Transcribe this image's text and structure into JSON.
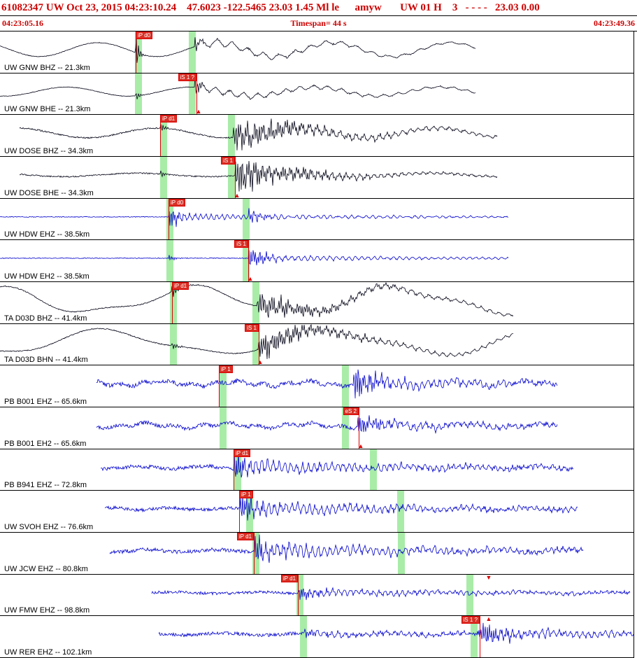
{
  "header": {
    "line1": "61082347 UW Oct 23, 2015 04:23:10.24    47.6023 -122.5465 23.03 1.45 Ml le      amyw       UW 01 H    3   - - - -   23.03 0.00",
    "start_time": "04:23:05.16",
    "timespan": "Timespan=  44 s",
    "end_time": "04:23:49.36"
  },
  "colors": {
    "header_text": "#cc0000",
    "pick_red": "#dd0000",
    "band_green": "#a8eca8",
    "flag_bg": "#d93025",
    "flag_text": "#ffffff",
    "trace_colors": {
      "black": "#000014",
      "blue": "#0000cc"
    }
  },
  "icons": {
    "up": "▲",
    "down": "▼"
  },
  "traces": [
    {
      "label": "UW GNW BHZ -- 21.3km",
      "color": "black",
      "x0": 0,
      "x1": 0.75,
      "seed": 11,
      "sines": [
        {
          "amp": 10,
          "period": 168,
          "phase": 2.6
        }
      ],
      "noise": 0.4,
      "bursts": [
        {
          "x": 0.214,
          "amp": 24,
          "freq": 0.3,
          "decay": 0.26
        },
        {
          "x": 0.307,
          "amp": 15,
          "freq": 0.28,
          "decay": 0.2
        },
        {
          "x": 0.312,
          "amp": 5,
          "freq": 0.045,
          "decay": 0.004
        }
      ],
      "bands": [
        0.219,
        0.303
      ],
      "picks": [
        {
          "label": "iP d0",
          "line": 0.214,
          "side": "right"
        }
      ],
      "triangles": []
    },
    {
      "label": "UW GNW BHE -- 21.3km",
      "color": "black",
      "x0": 0,
      "x1": 0.75,
      "seed": 12,
      "sines": [
        {
          "amp": 6.5,
          "period": 178,
          "phase": 4.5
        }
      ],
      "noise": 0.4,
      "bursts": [
        {
          "x": 0.214,
          "amp": 9,
          "freq": 0.3,
          "decay": 0.25
        },
        {
          "x": 0.307,
          "amp": 21,
          "freq": 0.3,
          "decay": 0.22
        },
        {
          "x": 0.313,
          "amp": 4.5,
          "freq": 0.05,
          "decay": 0.0035
        }
      ],
      "bands": [
        0.219,
        0.303
      ],
      "picks": [
        {
          "label": "iS 1 ?",
          "line": 0.31,
          "side": "left"
        }
      ],
      "triangles": [
        {
          "x": 0.3135,
          "edge": "bottom",
          "dir": "up"
        }
      ]
    },
    {
      "label": "UW DOSE BHZ -- 34.3km",
      "color": "black",
      "x0": 0.031,
      "x1": 0.785,
      "seed": 13,
      "sines": [
        {
          "amp": 7,
          "period": 200,
          "phase": 0.8
        }
      ],
      "noise": 1.0,
      "bursts": [
        {
          "x": 0.253,
          "amp": 13,
          "freq": 0.3,
          "decay": 0.22
        },
        {
          "x": 0.368,
          "amp": 17,
          "freq": 0.3,
          "decay": 0.012
        },
        {
          "x": 0.375,
          "amp": 9,
          "freq": 0.09,
          "decay": 0.005
        }
      ],
      "bands": [
        0.258,
        0.365
      ],
      "picks": [
        {
          "label": "iP d1",
          "line": 0.253,
          "side": "right"
        }
      ],
      "triangles": []
    },
    {
      "label": "UW DOSE BHE -- 34.3km",
      "color": "black",
      "x0": 0.031,
      "x1": 0.785,
      "seed": 14,
      "sines": [
        {
          "amp": 2.5,
          "period": 210,
          "phase": 2.0
        }
      ],
      "noise": 0.9,
      "bursts": [
        {
          "x": 0.253,
          "amp": 4,
          "freq": 0.3,
          "decay": 0.2
        },
        {
          "x": 0.371,
          "amp": 19,
          "freq": 0.31,
          "decay": 0.014
        },
        {
          "x": 0.378,
          "amp": 8,
          "freq": 0.1,
          "decay": 0.006
        }
      ],
      "bands": [
        0.258,
        0.365
      ],
      "picks": [
        {
          "label": "iS 1",
          "line": 0.371,
          "side": "left"
        }
      ],
      "triangles": [
        {
          "x": 0.374,
          "edge": "bottom",
          "dir": "up"
        }
      ]
    },
    {
      "label": "UW HDW EHZ -- 38.5km",
      "color": "blue",
      "x0": 0,
      "x1": 0.802,
      "seed": 15,
      "sines": [],
      "noise": 0.5,
      "bursts": [
        {
          "x": 0.266,
          "amp": 16,
          "freq": 0.34,
          "decay": 0.09
        },
        {
          "x": 0.272,
          "amp": 5,
          "freq": 0.13,
          "decay": 0.007
        },
        {
          "x": 0.392,
          "amp": 8,
          "freq": 0.3,
          "decay": 0.05
        },
        {
          "x": 0.398,
          "amp": 2.5,
          "freq": 0.1,
          "decay": 0.003
        }
      ],
      "bands": [
        0.268,
        0.389
      ],
      "picks": [
        {
          "label": "iP d0",
          "line": 0.266,
          "side": "right"
        }
      ],
      "triangles": []
    },
    {
      "label": "UW HDW EH2 -- 38.5km",
      "color": "blue",
      "x0": 0,
      "x1": 0.802,
      "seed": 16,
      "sines": [],
      "noise": 0.5,
      "bursts": [
        {
          "x": 0.266,
          "amp": 4,
          "freq": 0.34,
          "decay": 0.1
        },
        {
          "x": 0.392,
          "amp": 14,
          "freq": 0.32,
          "decay": 0.05
        },
        {
          "x": 0.398,
          "amp": 4,
          "freq": 0.11,
          "decay": 0.0035
        }
      ],
      "bands": [
        0.268,
        0.389
      ],
      "picks": [
        {
          "label": "iS 1",
          "line": 0.392,
          "side": "left"
        }
      ],
      "triangles": [
        {
          "x": 0.395,
          "edge": "bottom",
          "dir": "up"
        }
      ]
    },
    {
      "label": "TA D03D BHZ -- 41.4km",
      "color": "black",
      "x0": 0,
      "x1": 0.81,
      "seed": 17,
      "sines": [
        {
          "amp": 17,
          "period": 290,
          "phase": 1.8
        },
        {
          "amp": 5,
          "period": 130,
          "phase": 0.6
        }
      ],
      "noise": 0.7,
      "bursts": [
        {
          "x": 0.271,
          "amp": 9,
          "freq": 0.3,
          "decay": 0.12
        },
        {
          "x": 0.406,
          "amp": 13,
          "freq": 0.3,
          "decay": 0.012
        },
        {
          "x": 0.412,
          "amp": 5,
          "freq": 0.08,
          "decay": 0.003
        }
      ],
      "bands": [
        0.274,
        0.404
      ],
      "picks": [
        {
          "label": "iP d1",
          "line": 0.271,
          "side": "right"
        }
      ],
      "triangles": []
    },
    {
      "label": "TA D03D BHN -- 41.4km",
      "color": "black",
      "x0": 0,
      "x1": 0.81,
      "seed": 18,
      "sines": [
        {
          "amp": 16,
          "period": 320,
          "phase": 4.9
        },
        {
          "amp": 4,
          "period": 150,
          "phase": 2.2
        }
      ],
      "noise": 0.7,
      "bursts": [
        {
          "x": 0.271,
          "amp": 5,
          "freq": 0.3,
          "decay": 0.12
        },
        {
          "x": 0.408,
          "amp": 15,
          "freq": 0.31,
          "decay": 0.014
        },
        {
          "x": 0.414,
          "amp": 6,
          "freq": 0.09,
          "decay": 0.004
        }
      ],
      "bands": [
        0.274,
        0.404
      ],
      "picks": [
        {
          "label": "iS 1",
          "line": 0.408,
          "side": "left"
        }
      ],
      "triangles": [
        {
          "x": 0.411,
          "edge": "bottom",
          "dir": "up"
        }
      ]
    },
    {
      "label": "PB B001 EHZ -- 65.6km",
      "color": "blue",
      "x0": 0.152,
      "x1": 0.88,
      "seed": 19,
      "sines": [
        {
          "amp": 2.5,
          "period": 105,
          "phase": 0.4
        },
        {
          "amp": 1.8,
          "period": 34,
          "phase": 1.2
        }
      ],
      "noise": 3.0,
      "bursts": [
        {
          "x": 0.558,
          "amp": 19,
          "freq": 0.33,
          "decay": 0.04
        },
        {
          "x": 0.563,
          "amp": 7,
          "freq": 0.12,
          "decay": 0.005
        }
      ],
      "bands": [
        0.352,
        0.545
      ],
      "picks": [
        {
          "label": "iP 1",
          "line": 0.346,
          "side": "right"
        }
      ],
      "triangles": []
    },
    {
      "label": "PB B001 EH2 -- 65.6km",
      "color": "blue",
      "x0": 0.152,
      "x1": 0.88,
      "seed": 20,
      "sines": [
        {
          "amp": 2.5,
          "period": 115,
          "phase": 2.8
        },
        {
          "amp": 1.8,
          "period": 40,
          "phase": 0.3
        }
      ],
      "noise": 2.8,
      "bursts": [
        {
          "x": 0.564,
          "amp": 12,
          "freq": 0.31,
          "decay": 0.035
        },
        {
          "x": 0.57,
          "amp": 5,
          "freq": 0.11,
          "decay": 0.004
        }
      ],
      "bands": [
        0.352,
        0.545
      ],
      "picks": [
        {
          "label": "eS 2",
          "line": 0.566,
          "side": "left"
        }
      ],
      "triangles": [
        {
          "x": 0.569,
          "edge": "bottom",
          "dir": "up"
        }
      ]
    },
    {
      "label": "PB B941 EHZ -- 72.8km",
      "color": "blue",
      "x0": 0.159,
      "x1": 0.905,
      "seed": 21,
      "sines": [
        {
          "amp": 1.8,
          "period": 95,
          "phase": 1.1
        }
      ],
      "noise": 2.8,
      "bursts": [
        {
          "x": 0.369,
          "amp": 19,
          "freq": 0.34,
          "decay": 0.05
        },
        {
          "x": 0.374,
          "amp": 8,
          "freq": 0.12,
          "decay": 0.0035
        }
      ],
      "bands": [
        0.375,
        0.589
      ],
      "picks": [
        {
          "label": "iP d1",
          "line": 0.369,
          "side": "right"
        }
      ],
      "triangles": []
    },
    {
      "label": "UW SVOH EHZ -- 76.6km",
      "color": "blue",
      "x0": 0.166,
      "x1": 0.912,
      "seed": 22,
      "sines": [
        {
          "amp": 1.5,
          "period": 85,
          "phase": 2.4
        }
      ],
      "noise": 2.4,
      "bursts": [
        {
          "x": 0.379,
          "amp": 17,
          "freq": 0.34,
          "decay": 0.045
        },
        {
          "x": 0.385,
          "amp": 8,
          "freq": 0.12,
          "decay": 0.003
        }
      ],
      "bands": [
        0.394,
        0.632
      ],
      "picks": [
        {
          "label": "iP 1",
          "line": 0.377,
          "side": "right"
        }
      ],
      "triangles": []
    },
    {
      "label": "UW JCW EHZ -- 80.8km",
      "color": "blue",
      "x0": 0.173,
      "x1": 0.92,
      "seed": 23,
      "sines": [
        {
          "amp": 1.8,
          "period": 100,
          "phase": 0.9
        }
      ],
      "noise": 2.8,
      "bursts": [
        {
          "x": 0.402,
          "amp": 15,
          "freq": 0.33,
          "decay": 0.04
        },
        {
          "x": 0.408,
          "amp": 8,
          "freq": 0.12,
          "decay": 0.0028
        }
      ],
      "bands": [
        0.404,
        0.634
      ],
      "picks": [
        {
          "label": "iP d1",
          "line": 0.401,
          "side": "left"
        }
      ],
      "triangles": []
    },
    {
      "label": "UW FMW EHZ -- 98.8km",
      "color": "blue",
      "x0": 0.24,
      "x1": 0.995,
      "seed": 24,
      "sines": [
        {
          "amp": 1.2,
          "period": 125,
          "phase": 1.6
        }
      ],
      "noise": 2.0,
      "bursts": [
        {
          "x": 0.471,
          "amp": 10,
          "freq": 0.33,
          "decay": 0.045
        },
        {
          "x": 0.477,
          "amp": 4,
          "freq": 0.12,
          "decay": 0.0028
        }
      ],
      "bands": [
        0.474,
        0.742
      ],
      "picks": [
        {
          "label": "iP d1",
          "line": 0.47,
          "side": "left"
        }
      ],
      "triangles": [
        {
          "x": 0.771,
          "edge": "top",
          "dir": "down"
        }
      ]
    },
    {
      "label": "UW RER EHZ -- 102.1km",
      "color": "blue",
      "x0": 0.25,
      "x1": 1.0,
      "seed": 25,
      "sines": [
        {
          "amp": 1.3,
          "period": 115,
          "phase": 2.9
        }
      ],
      "noise": 2.4,
      "bursts": [
        {
          "x": 0.481,
          "amp": 6,
          "freq": 0.32,
          "decay": 0.04
        },
        {
          "x": 0.487,
          "amp": 3,
          "freq": 0.1,
          "decay": 0.003
        },
        {
          "x": 0.755,
          "amp": 13,
          "freq": 0.33,
          "decay": 0.025
        },
        {
          "x": 0.761,
          "amp": 6,
          "freq": 0.12,
          "decay": 0.004
        }
      ],
      "bands": [
        0.479,
        0.748
      ],
      "picks": [
        {
          "label": "iS 1 ?",
          "line": 0.757,
          "side": "left"
        }
      ],
      "triangles": [
        {
          "x": 0.771,
          "edge": "top",
          "dir": "up"
        }
      ]
    }
  ]
}
